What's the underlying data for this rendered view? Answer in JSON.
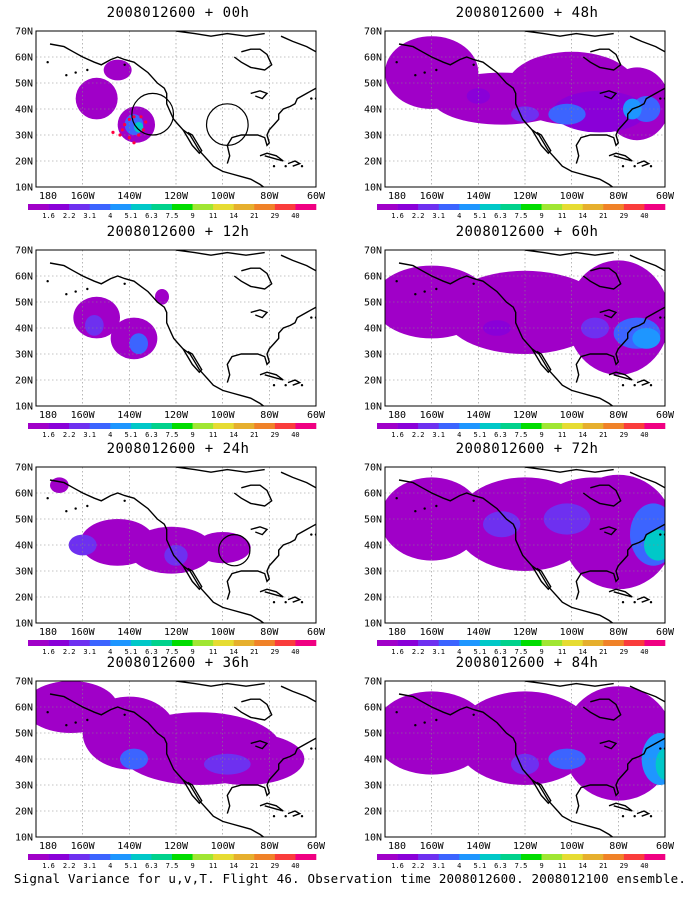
{
  "panels": [
    {
      "title": "2008012600 + 00h"
    },
    {
      "title": "2008012600 + 48h"
    },
    {
      "title": "2008012600 + 12h"
    },
    {
      "title": "2008012600 + 60h"
    },
    {
      "title": "2008012600 + 24h"
    },
    {
      "title": "2008012600 + 72h"
    },
    {
      "title": "2008012600 + 36h"
    },
    {
      "title": "2008012600 + 84h"
    }
  ],
  "lat_labels": [
    "70N",
    "60N",
    "50N",
    "40N",
    "30N",
    "20N",
    "10N"
  ],
  "lon_labels": [
    "180",
    "160W",
    "140W",
    "120W",
    "100W",
    "80W",
    "60W"
  ],
  "colorbar": {
    "labels": [
      "1.6",
      "2.2",
      "3.1",
      "4",
      "5.1",
      "6.3",
      "7.5",
      "9",
      "11",
      "14",
      "21",
      "29",
      "40"
    ],
    "colors": [
      "#a000c8",
      "#8a00d8",
      "#6e30f0",
      "#3c64ff",
      "#1e96ff",
      "#00c8c8",
      "#00d28c",
      "#00dc00",
      "#a0e632",
      "#e6dc32",
      "#e6af2d",
      "#f08228",
      "#fa3c3c",
      "#f00082"
    ]
  },
  "caption": "Signal Variance for u,v,T. Flight 46. Observation time 2008012600. 2008012100 ensemble."
}
